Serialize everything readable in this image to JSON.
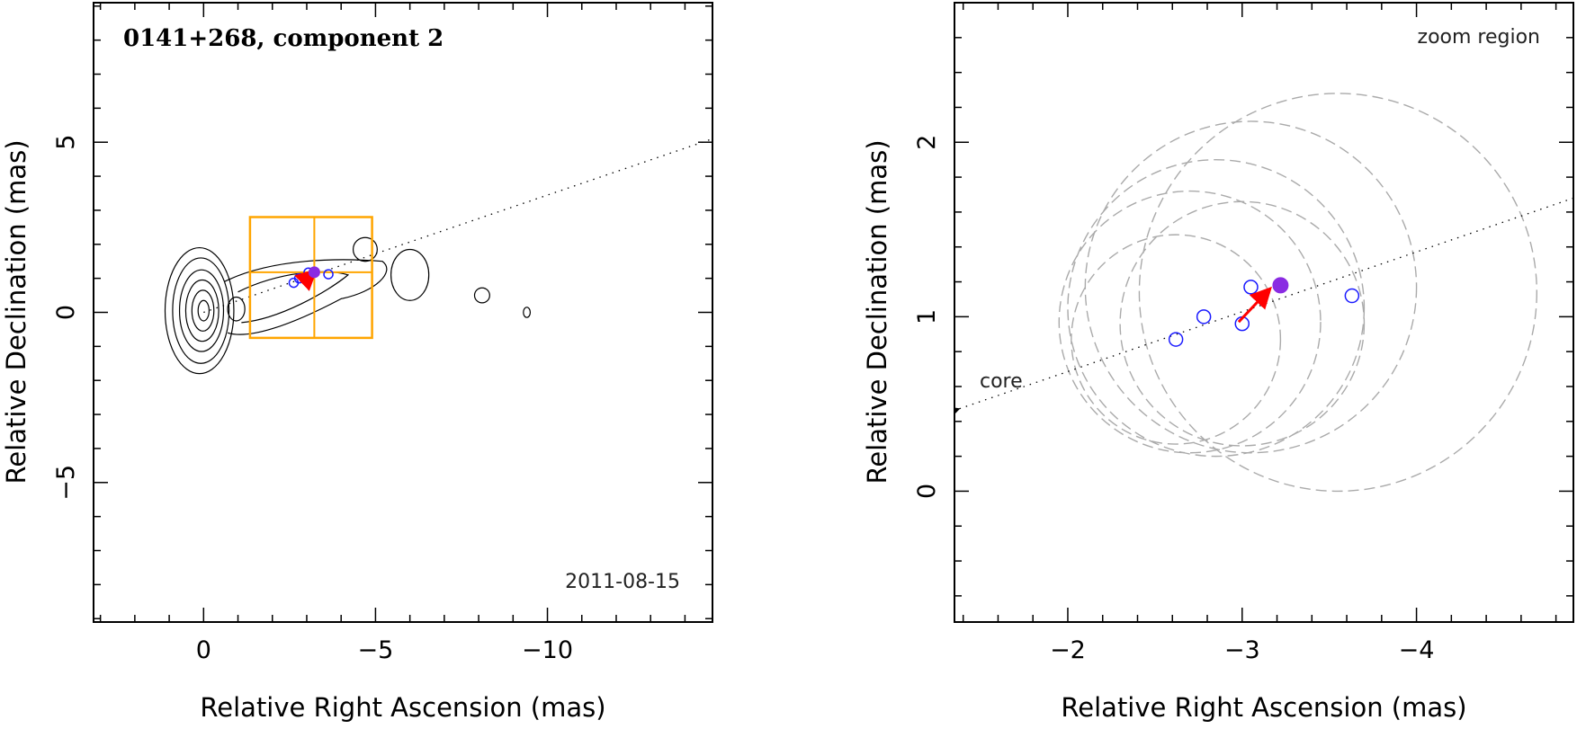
{
  "colors": {
    "axis": "#000000",
    "box": "#FFA500",
    "marker": "#1a1aff",
    "arrow": "#ff0000",
    "filled_marker": "#8a2be2",
    "dashed": "#aaaaaa"
  },
  "chart_data": [
    {
      "type": "scatter",
      "title": "0141+268, component 2",
      "date": "2011-08-15",
      "xlabel": "Relative Right Ascension (mas)",
      "ylabel": "Relative Declination (mas)",
      "xlim": [
        3.2,
        -14.8
      ],
      "ylim": [
        -9.1,
        9.1
      ],
      "xticks": [
        0,
        -5,
        -10
      ],
      "xtick_labels": [
        "0",
        "−5",
        "−10"
      ],
      "yticks": [
        -5,
        0,
        5
      ],
      "ytick_labels": [
        "−5",
        "0",
        "5"
      ],
      "open_points": [
        {
          "x": -2.62,
          "y": 0.87
        },
        {
          "x": -2.78,
          "y": 1.0
        },
        {
          "x": -3.0,
          "y": 0.96
        },
        {
          "x": -3.05,
          "y": 1.17
        },
        {
          "x": -3.63,
          "y": 1.12
        }
      ],
      "filled_point": {
        "x": -3.22,
        "y": 1.18
      },
      "arrow": {
        "from": {
          "x": -2.98,
          "y": 0.97
        },
        "to": {
          "x": -3.2,
          "y": 1.18
        }
      },
      "jet_line": {
        "from": {
          "x": 0,
          "y": 0
        },
        "to": {
          "x": -14.8,
          "y": 5.1
        }
      },
      "zoom_box": {
        "x0": -1.35,
        "x1": -4.9,
        "y0": -0.75,
        "y1": 2.8,
        "xmid": -3.22,
        "ymid": 1.18
      },
      "contours": [
        {
          "x": 0.0,
          "y": 0.05,
          "rx": 0.16,
          "ry": 0.3
        },
        {
          "x": 0.02,
          "y": 0.05,
          "rx": 0.32,
          "ry": 0.6
        },
        {
          "x": 0.04,
          "y": 0.05,
          "rx": 0.48,
          "ry": 0.9
        },
        {
          "x": 0.06,
          "y": 0.05,
          "rx": 0.64,
          "ry": 1.2
        },
        {
          "x": 0.08,
          "y": 0.05,
          "rx": 0.82,
          "ry": 1.55
        },
        {
          "x": 0.12,
          "y": 0.05,
          "rx": 1.0,
          "ry": 1.85
        },
        {
          "x": -0.95,
          "y": 0.1,
          "rx": 0.25,
          "ry": 0.35
        },
        {
          "x": -6.0,
          "y": 1.1,
          "rx": 0.55,
          "ry": 0.75
        },
        {
          "x": -8.1,
          "y": 0.5,
          "rx": 0.22,
          "ry": 0.22
        },
        {
          "x": -9.4,
          "y": 0.0,
          "rx": 0.1,
          "ry": 0.15
        },
        {
          "x": -4.7,
          "y": 1.85,
          "rx": 0.35,
          "ry": 0.35
        }
      ]
    },
    {
      "type": "scatter",
      "title": "zoom region",
      "xlabel": "Relative Right Ascension (mas)",
      "ylabel": "Relative Declination (mas)",
      "xlim": [
        -1.35,
        -4.9
      ],
      "ylim": [
        -0.75,
        2.8
      ],
      "xticks": [
        -2,
        -3,
        -4
      ],
      "xtick_labels": [
        "−2",
        "−3",
        "−4"
      ],
      "yticks": [
        0,
        1,
        2
      ],
      "ytick_labels": [
        "0",
        "1",
        "2"
      ],
      "core_label": "core",
      "open_points": [
        {
          "x": -2.62,
          "y": 0.87
        },
        {
          "x": -2.78,
          "y": 1.0
        },
        {
          "x": -3.0,
          "y": 0.96
        },
        {
          "x": -3.05,
          "y": 1.17
        },
        {
          "x": -3.63,
          "y": 1.12
        }
      ],
      "filled_point": {
        "x": -3.22,
        "y": 1.18
      },
      "arrow": {
        "from": {
          "x": -2.98,
          "y": 0.97
        },
        "to": {
          "x": -3.15,
          "y": 1.15
        }
      },
      "jet_line": {
        "from": {
          "x": -1.35,
          "y": 0.47
        },
        "to": {
          "x": -4.9,
          "y": 1.68
        }
      },
      "dashed_circles": [
        {
          "x": -3.55,
          "y": 1.14,
          "r": 1.14
        },
        {
          "x": -3.05,
          "y": 1.17,
          "r": 0.95
        },
        {
          "x": -2.85,
          "y": 1.05,
          "r": 0.85
        },
        {
          "x": -2.62,
          "y": 0.87,
          "r": 0.6
        },
        {
          "x": -2.7,
          "y": 0.97,
          "r": 0.75
        },
        {
          "x": -3.0,
          "y": 0.96,
          "r": 0.7
        }
      ]
    }
  ]
}
